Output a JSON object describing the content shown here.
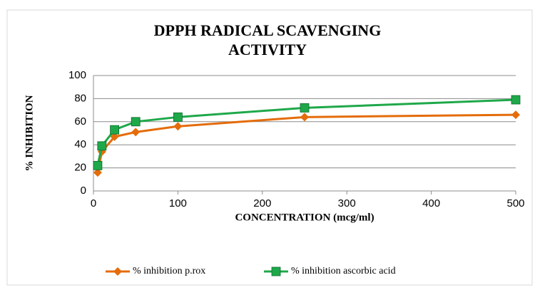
{
  "chart_data": {
    "type": "line",
    "title": [
      "DPPH RADICAL SCAVENGING",
      "ACTIVITY"
    ],
    "x_label": "CONCENTRATION (mcg/ml)",
    "y_label": "% INHIBITION",
    "x": [
      5,
      10,
      25,
      50,
      100,
      250,
      500
    ],
    "series": [
      {
        "name": "% inhibition p.rox",
        "color": "#e46c0a",
        "marker": "diamond",
        "values": [
          16,
          34,
          47,
          51,
          56,
          64,
          66
        ]
      },
      {
        "name": "% inhibition ascorbic acid",
        "color": "#1fa84a",
        "marker": "square",
        "values": [
          22,
          39,
          53,
          60,
          64,
          72,
          79
        ]
      }
    ],
    "xlim": [
      0,
      500
    ],
    "xticks": [
      0,
      100,
      200,
      300,
      400,
      500
    ],
    "ylim": [
      0,
      100
    ],
    "yticks": [
      0,
      20,
      40,
      60,
      80,
      100
    ],
    "grid": true,
    "legend": "bottom"
  }
}
